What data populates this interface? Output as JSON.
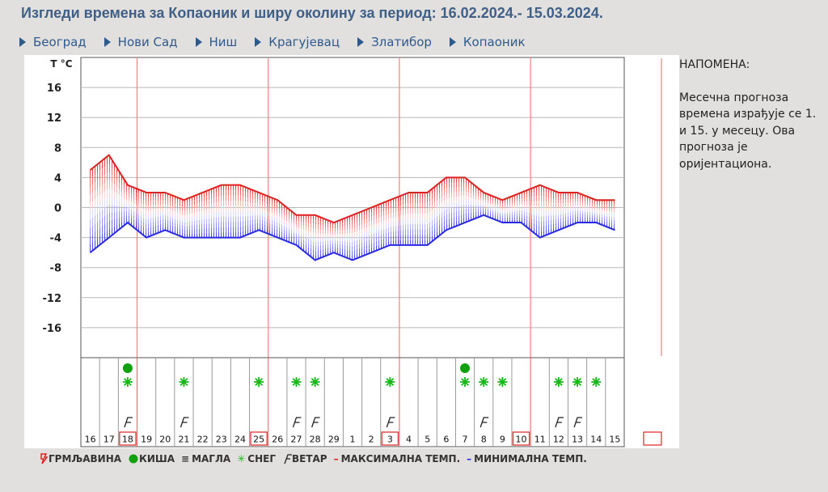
{
  "title": "Изгледи времена за Копаоник и ширу околину за период: 16.02.2024.- 15.03.2024.",
  "nav": [
    "Београд",
    "Нови Сад",
    "Ниш",
    "Крагујевац",
    "Златибор",
    "Копаоник"
  ],
  "note": {
    "heading": "НАПОМЕНА:",
    "body": "Месечна прогноза времена израђује се 1. и 15. у месецу. Ова прогноза је оријентациона."
  },
  "legend": {
    "thunder": "ГРМЉАВИНА",
    "rain": "КИША",
    "fog": "МАГЛА",
    "snow": "СНЕГ",
    "wind": "ВЕТАР",
    "max": "МАКСИМАЛНА ТЕМП.",
    "min": "МИНИМАЛНА ТЕМП."
  },
  "colors": {
    "max": "#dd2222",
    "min": "#2a2ae0",
    "snow": "#18b818",
    "rain": "#10a010",
    "accent": "#3f5f86"
  },
  "chart_data": {
    "type": "area",
    "ylabel": "T °C",
    "yticks": [
      16,
      12,
      8,
      4,
      0,
      -4,
      -8,
      -12,
      -16
    ],
    "ylim": [
      -20,
      20
    ],
    "days": [
      "16",
      "17",
      "18",
      "19",
      "20",
      "21",
      "22",
      "23",
      "24",
      "25",
      "26",
      "27",
      "28",
      "29",
      "1",
      "2",
      "3",
      "4",
      "5",
      "6",
      "7",
      "8",
      "9",
      "10",
      "11",
      "12",
      "13",
      "14",
      "15"
    ],
    "highlighted_days": [
      "18",
      "25",
      "3",
      "10"
    ],
    "week_dividers_after": [
      "18",
      "25",
      "3",
      "10"
    ],
    "series": [
      {
        "name": "МАКСИМАЛНА ТЕМП.",
        "values": [
          5,
          7,
          3,
          2,
          2,
          1,
          2,
          3,
          3,
          2,
          1,
          -1,
          -1,
          -2,
          -1,
          0,
          1,
          2,
          2,
          4,
          4,
          2,
          1,
          2,
          3,
          2,
          2,
          1,
          1
        ]
      },
      {
        "name": "МИНИМАЛНА ТЕМП.",
        "values": [
          -6,
          -4,
          -2,
          -4,
          -3,
          -4,
          -4,
          -4,
          -4,
          -3,
          -4,
          -5,
          -7,
          -6,
          -7,
          -6,
          -5,
          -5,
          -5,
          -3,
          -2,
          -1,
          -2,
          -2,
          -4,
          -3,
          -2,
          -2,
          -3
        ]
      }
    ],
    "snow_days": [
      "18",
      "21",
      "25",
      "27",
      "28",
      "3",
      "7",
      "8",
      "9",
      "12",
      "13",
      "14"
    ],
    "rain_days": [
      "18",
      "7"
    ],
    "wind_days": [
      "18",
      "21",
      "27",
      "28",
      "3",
      "8",
      "12",
      "13"
    ]
  }
}
